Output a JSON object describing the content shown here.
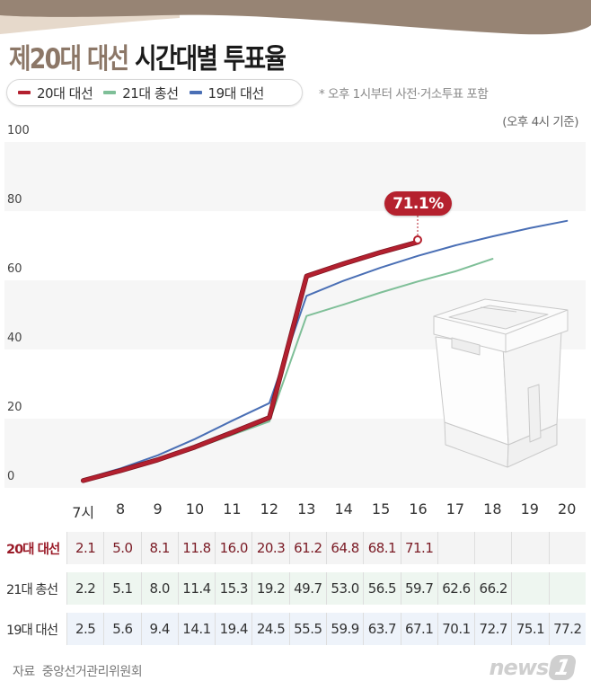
{
  "header": {
    "title_accent": "제20대 대선",
    "title_rest": " 시간대별 투표율"
  },
  "legend": {
    "items": [
      {
        "label": "20대 대선",
        "color": "#b3202f"
      },
      {
        "label": "21대 총선",
        "color": "#7fbf98"
      },
      {
        "label": "19대 대선",
        "color": "#4a6fb5"
      }
    ],
    "note": "* 오후 1시부터 사전·거소투표 포함",
    "basis": "(오후 4시 기준)"
  },
  "callout": {
    "label": "71.1%"
  },
  "source": {
    "label": "자료",
    "org": "중앙선거관리위원회"
  },
  "logo": {
    "text": "news",
    "mark": "1"
  },
  "chart_data": {
    "type": "line",
    "title": "제20대 대선 시간대별 투표율",
    "xlabel": "",
    "ylabel": "",
    "ylim": [
      0,
      100
    ],
    "yticks": [
      "100",
      "80",
      "60",
      "40",
      "20",
      "0"
    ],
    "categories": [
      "7시",
      "8",
      "9",
      "10",
      "11",
      "12",
      "13",
      "14",
      "15",
      "16",
      "17",
      "18",
      "19",
      "20"
    ],
    "series": [
      {
        "name": "20대 대선",
        "color": "#b3202f",
        "values": [
          2.1,
          5.0,
          8.1,
          11.8,
          16.0,
          20.3,
          61.2,
          64.8,
          68.1,
          71.1,
          null,
          null,
          null,
          null
        ]
      },
      {
        "name": "21대 총선",
        "color": "#7fbf98",
        "values": [
          2.2,
          5.1,
          8.0,
          11.4,
          15.3,
          19.2,
          49.7,
          53.0,
          56.5,
          59.7,
          62.6,
          66.2,
          null,
          null
        ]
      },
      {
        "name": "19대 대선",
        "color": "#4a6fb5",
        "values": [
          2.5,
          5.6,
          9.4,
          14.1,
          19.4,
          24.5,
          55.5,
          59.9,
          63.7,
          67.1,
          70.1,
          72.7,
          75.1,
          77.2
        ]
      }
    ],
    "annotations": [
      "71.1%",
      "* 오후 1시부터 사전·거소투표 포함",
      "(오후 4시 기준)"
    ],
    "grid": "alternating bands",
    "legend_position": "top-left"
  },
  "table": {
    "rows": [
      {
        "label": "20대 대선",
        "cells": [
          "2.1",
          "5.0",
          "8.1",
          "11.8",
          "16.0",
          "20.3",
          "61.2",
          "64.8",
          "68.1",
          "71.1",
          "",
          "",
          "",
          ""
        ]
      },
      {
        "label": "21대 총선",
        "cells": [
          "2.2",
          "5.1",
          "8.0",
          "11.4",
          "15.3",
          "19.2",
          "49.7",
          "53.0",
          "56.5",
          "59.7",
          "62.6",
          "66.2",
          "",
          ""
        ]
      },
      {
        "label": "19대 대선",
        "cells": [
          "2.5",
          "5.6",
          "9.4",
          "14.1",
          "19.4",
          "24.5",
          "55.5",
          "59.9",
          "63.7",
          "67.1",
          "70.1",
          "72.7",
          "75.1",
          "77.2"
        ]
      }
    ]
  }
}
